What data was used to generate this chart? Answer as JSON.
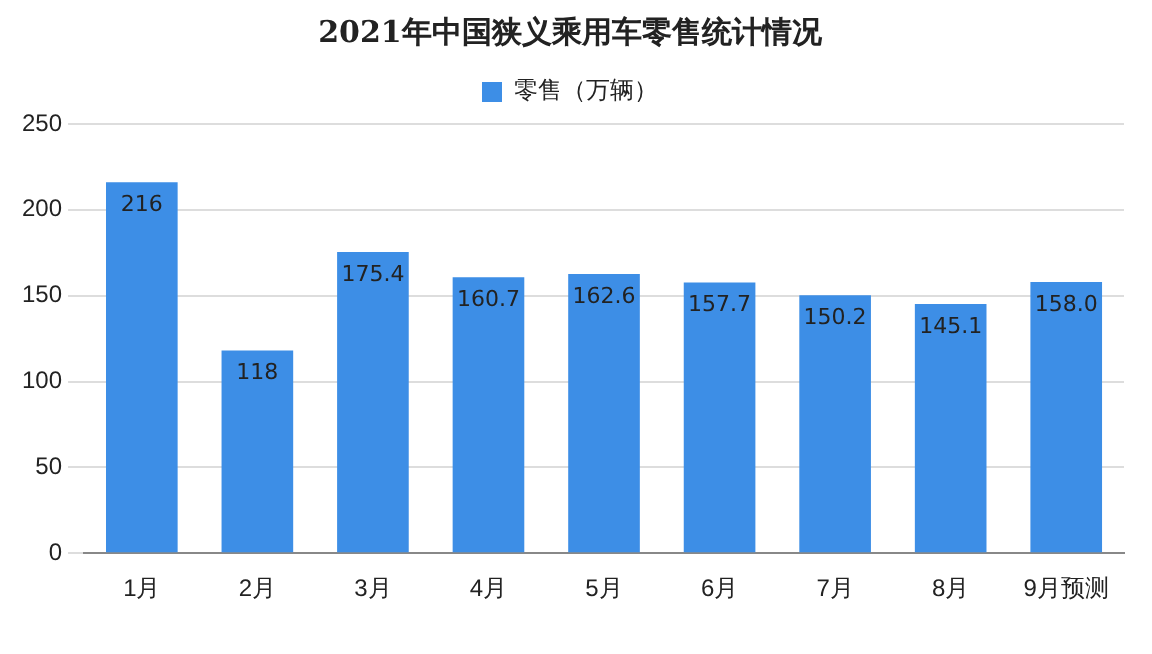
{
  "chart_data": {
    "type": "bar",
    "title": "2021年中国狭义乘用车零售统计情况",
    "categories": [
      "1月",
      "2月",
      "3月",
      "4月",
      "5月",
      "6月",
      "7月",
      "8月",
      "9月预测"
    ],
    "series": [
      {
        "name": "零售（万辆）",
        "color": "#3d8ee6",
        "values": [
          216,
          118,
          175.4,
          160.7,
          162.6,
          157.7,
          150.2,
          145.1,
          158.0
        ],
        "value_labels": [
          "216",
          "118",
          "175.4",
          "160.7",
          "162.6",
          "157.7",
          "150.2",
          "145.1",
          "158.0"
        ]
      }
    ],
    "ylim": [
      0,
      250
    ],
    "yticks": [
      0,
      50,
      100,
      150,
      200,
      250
    ],
    "grid": "y",
    "legend": "top"
  }
}
